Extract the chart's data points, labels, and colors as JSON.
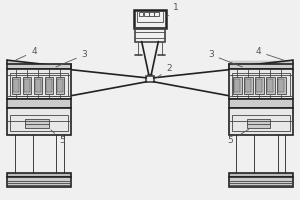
{
  "bg_color": "#f0f0f0",
  "line_color": "#444444",
  "dark_line": "#222222",
  "label_color": "#555555",
  "lw_main": 1.2,
  "lw_thin": 0.6,
  "lw_thick": 1.8,
  "figsize": [
    3.0,
    2.0
  ],
  "dpi": 100
}
